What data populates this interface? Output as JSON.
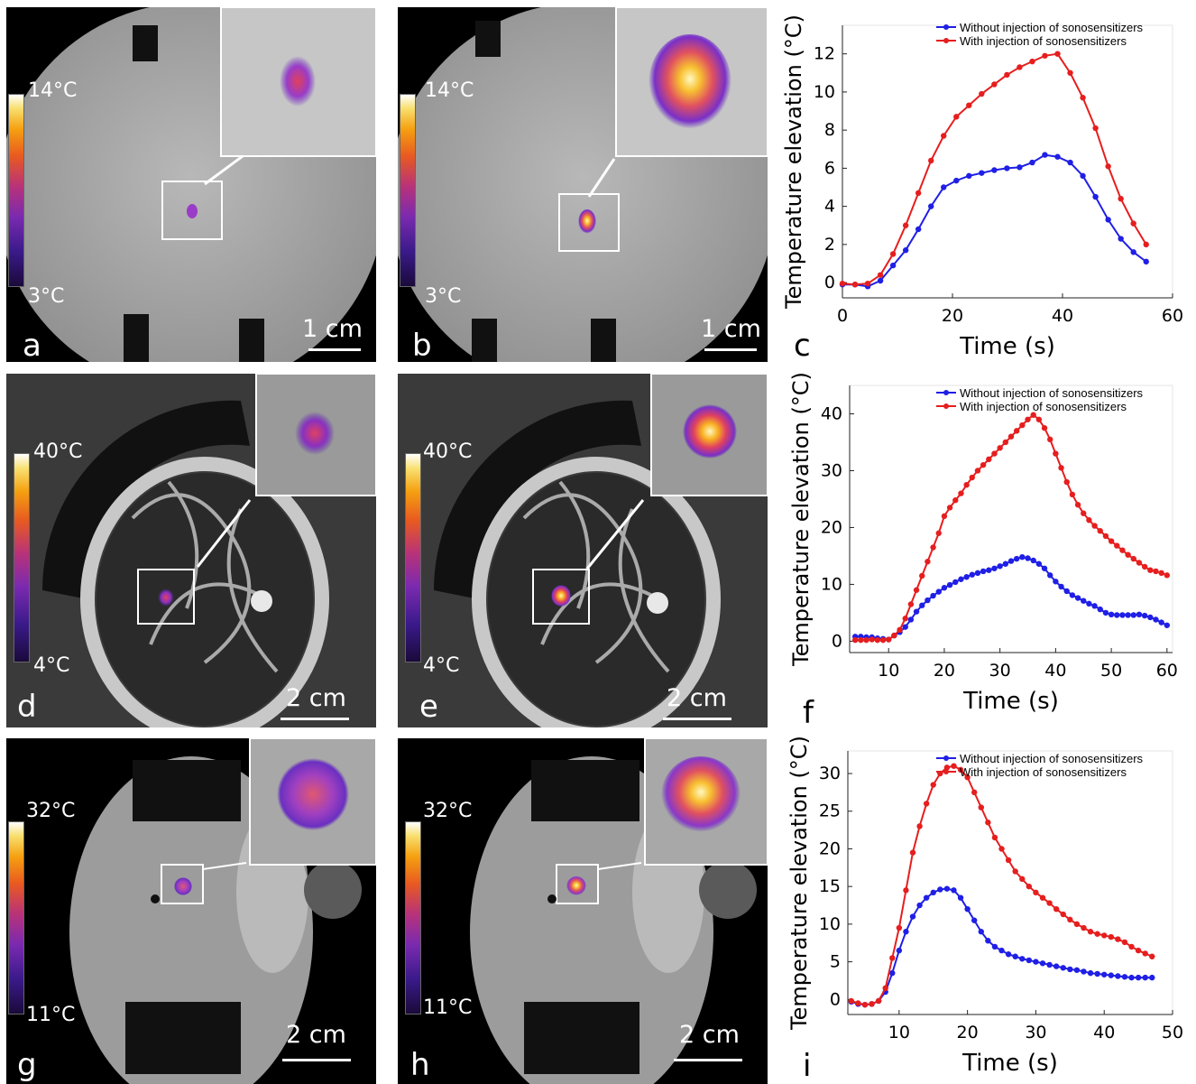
{
  "panels": [
    {
      "label": "a",
      "scale": "1 cm",
      "cb_max": "14°C",
      "cb_min": "3°C",
      "style": "phantom",
      "spot": 0.45
    },
    {
      "label": "b",
      "scale": "1 cm",
      "cb_max": "14°C",
      "cb_min": "3°C",
      "style": "phantom",
      "spot": 0.9
    },
    {
      "label": "d",
      "scale": "2 cm",
      "cb_max": "40°C",
      "cb_min": "4°C",
      "style": "brain",
      "spot": 0.45
    },
    {
      "label": "e",
      "scale": "2 cm",
      "cb_max": "40°C",
      "cb_min": "4°C",
      "style": "brain",
      "spot": 0.9
    },
    {
      "label": "g",
      "scale": "2 cm",
      "cb_max": "32°C",
      "cb_min": "11°C",
      "style": "egg",
      "spot": 0.55
    },
    {
      "label": "h",
      "scale": "2 cm",
      "cb_max": "32°C",
      "cb_min": "11°C",
      "style": "egg",
      "spot": 0.95
    }
  ],
  "colors": {
    "blue": "#1f1fe6",
    "red": "#e61e1e"
  },
  "chart_data": [
    {
      "type": "line",
      "panel_label": "c",
      "xlabel": "Time (s)",
      "ylabel": "Temperature elevation (°C)",
      "xlim": [
        0,
        60
      ],
      "ylim": [
        -0.8,
        13.5
      ],
      "xticks": [
        0,
        20,
        40,
        60
      ],
      "yticks": [
        0,
        2,
        4,
        6,
        8,
        10,
        12
      ],
      "legend": "top-right",
      "series": [
        {
          "name": "Without injection of sonosensitizers",
          "color": "#1f1fe6",
          "x": [
            0,
            2.3,
            4.6,
            6.9,
            9.2,
            11.5,
            13.8,
            16.1,
            18.4,
            20.7,
            23,
            25.3,
            27.6,
            29.9,
            32.2,
            34.5,
            36.8,
            39.1,
            41.4,
            43.7,
            46,
            48.3,
            50.6,
            52.9,
            55.2
          ],
          "y": [
            -0.1,
            -0.1,
            -0.2,
            0.1,
            0.9,
            1.7,
            2.8,
            4.0,
            5.0,
            5.35,
            5.6,
            5.75,
            5.9,
            6.0,
            6.05,
            6.3,
            6.7,
            6.6,
            6.3,
            5.6,
            4.5,
            3.3,
            2.3,
            1.6,
            1.1
          ]
        },
        {
          "name": "With injection of sonosensitizers",
          "color": "#e61e1e",
          "x": [
            0,
            2.3,
            4.6,
            6.9,
            9.2,
            11.5,
            13.8,
            16.1,
            18.4,
            20.7,
            23,
            25.3,
            27.6,
            29.9,
            32.2,
            34.5,
            36.8,
            39.1,
            41.4,
            43.7,
            46,
            48.3,
            50.6,
            52.9,
            55.2
          ],
          "y": [
            -0.05,
            -0.1,
            -0.05,
            0.4,
            1.5,
            3.0,
            4.7,
            6.4,
            7.7,
            8.7,
            9.3,
            9.9,
            10.4,
            10.9,
            11.3,
            11.6,
            11.9,
            12.0,
            11.0,
            9.7,
            8.1,
            6.1,
            4.4,
            3.1,
            2.0
          ]
        }
      ]
    },
    {
      "type": "line",
      "panel_label": "f",
      "xlabel": "Time (s)",
      "ylabel": "Temperature elevation (°C)",
      "xlim": [
        3,
        61
      ],
      "ylim": [
        -2,
        45
      ],
      "xticks": [
        10,
        20,
        30,
        40,
        50,
        60
      ],
      "yticks": [
        0,
        10,
        20,
        30,
        40
      ],
      "legend": "top-right",
      "series": [
        {
          "name": "Without injection of sonosensitizers",
          "color": "#1f1fe6",
          "x": [
            4,
            5,
            6,
            7,
            8,
            9,
            10,
            11,
            12,
            13,
            14,
            15,
            16,
            17,
            18,
            19,
            20,
            21,
            22,
            23,
            24,
            25,
            26,
            27,
            28,
            29,
            30,
            31,
            32,
            33,
            34,
            35,
            36,
            37,
            38,
            39,
            40,
            41,
            42,
            43,
            44,
            45,
            46,
            47,
            48,
            49,
            50,
            51,
            52,
            53,
            54,
            55,
            56,
            57,
            58,
            59,
            60
          ],
          "y": [
            0.8,
            0.8,
            0.7,
            0.7,
            0.5,
            0.4,
            0.3,
            1.0,
            1.6,
            2.5,
            3.8,
            5.2,
            6.3,
            7.2,
            8.0,
            8.7,
            9.4,
            9.9,
            10.4,
            10.9,
            11.3,
            11.7,
            12.0,
            12.3,
            12.5,
            12.8,
            13.2,
            13.6,
            14.1,
            14.5,
            14.8,
            14.6,
            14.2,
            13.6,
            12.8,
            11.6,
            10.5,
            9.6,
            8.8,
            8.1,
            7.6,
            7.1,
            6.6,
            6.2,
            5.6,
            5.0,
            4.7,
            4.6,
            4.6,
            4.6,
            4.6,
            4.7,
            4.5,
            4.2,
            3.8,
            3.3,
            2.8
          ]
        },
        {
          "name": "With injection of sonosensitizers",
          "color": "#e61e1e",
          "x": [
            4,
            5,
            6,
            7,
            8,
            9,
            10,
            11,
            12,
            13,
            14,
            15,
            16,
            17,
            18,
            19,
            20,
            21,
            22,
            23,
            24,
            25,
            26,
            27,
            28,
            29,
            30,
            31,
            32,
            33,
            34,
            35,
            36,
            37,
            38,
            39,
            40,
            41,
            42,
            43,
            44,
            45,
            46,
            47,
            48,
            49,
            50,
            51,
            52,
            53,
            54,
            55,
            56,
            57,
            58,
            59,
            60
          ],
          "y": [
            0.2,
            0.2,
            0.2,
            0.3,
            0.2,
            0.2,
            0.3,
            1.0,
            2.0,
            4.0,
            6.5,
            9.0,
            11.5,
            14.0,
            16.5,
            19.0,
            22.0,
            23.5,
            24.8,
            26.0,
            27.5,
            28.8,
            30.0,
            31.0,
            32.0,
            33.0,
            34.0,
            35.0,
            36.0,
            37.0,
            38.0,
            39.0,
            39.8,
            39.0,
            37.5,
            35.5,
            33.0,
            30.5,
            28.0,
            25.8,
            24.0,
            22.5,
            21.3,
            20.3,
            19.4,
            18.5,
            17.6,
            16.8,
            16.0,
            15.2,
            14.5,
            13.8,
            13.1,
            12.5,
            12.3,
            12.0,
            11.6
          ]
        }
      ]
    },
    {
      "type": "line",
      "panel_label": "i",
      "xlabel": "Time (s)",
      "ylabel": "Temperature elevation (°C)",
      "xlim": [
        2.5,
        50
      ],
      "ylim": [
        -2,
        33
      ],
      "xticks": [
        10,
        20,
        30,
        40,
        50
      ],
      "yticks": [
        0,
        5,
        10,
        15,
        20,
        25,
        30
      ],
      "legend": "top-right",
      "series": [
        {
          "name": "Without injection of sonosensitizers",
          "color": "#1f1fe6",
          "x": [
            3,
            4,
            5,
            6,
            7,
            8,
            9,
            10,
            11,
            12,
            13,
            14,
            15,
            16,
            17,
            18,
            19,
            20,
            21,
            22,
            23,
            24,
            25,
            26,
            27,
            28,
            29,
            30,
            31,
            32,
            33,
            34,
            35,
            36,
            37,
            38,
            39,
            40,
            41,
            42,
            43,
            44,
            45,
            46,
            47
          ],
          "y": [
            -0.3,
            -0.6,
            -0.7,
            -0.6,
            -0.2,
            1.0,
            3.5,
            6.5,
            9.0,
            11.0,
            12.5,
            13.5,
            14.2,
            14.6,
            14.7,
            14.5,
            13.5,
            12.0,
            10.5,
            9.0,
            7.8,
            7.0,
            6.5,
            6.0,
            5.7,
            5.4,
            5.2,
            5.0,
            4.8,
            4.6,
            4.4,
            4.2,
            4.0,
            3.9,
            3.7,
            3.5,
            3.4,
            3.3,
            3.2,
            3.1,
            3.0,
            2.9,
            2.9,
            2.9,
            2.9
          ]
        },
        {
          "name": "With injection of sonosensitizers",
          "color": "#e61e1e",
          "x": [
            3,
            4,
            5,
            6,
            7,
            8,
            9,
            10,
            11,
            12,
            13,
            14,
            15,
            16,
            17,
            18,
            19,
            20,
            21,
            22,
            23,
            24,
            25,
            26,
            27,
            28,
            29,
            30,
            31,
            32,
            33,
            34,
            35,
            36,
            37,
            38,
            39,
            40,
            41,
            42,
            43,
            44,
            45,
            46,
            47
          ],
          "y": [
            -0.2,
            -0.5,
            -0.7,
            -0.6,
            -0.2,
            1.5,
            5.5,
            9.5,
            14.5,
            19.5,
            23.0,
            26.0,
            28.5,
            30.0,
            30.8,
            31.0,
            30.5,
            29.5,
            27.5,
            25.5,
            23.5,
            21.5,
            20.0,
            18.5,
            17.0,
            16.0,
            15.0,
            14.2,
            13.5,
            12.8,
            12.0,
            11.3,
            10.6,
            10.0,
            9.5,
            9.0,
            8.7,
            8.5,
            8.3,
            8.0,
            7.6,
            7.0,
            6.5,
            6.1,
            5.7
          ]
        }
      ]
    }
  ]
}
